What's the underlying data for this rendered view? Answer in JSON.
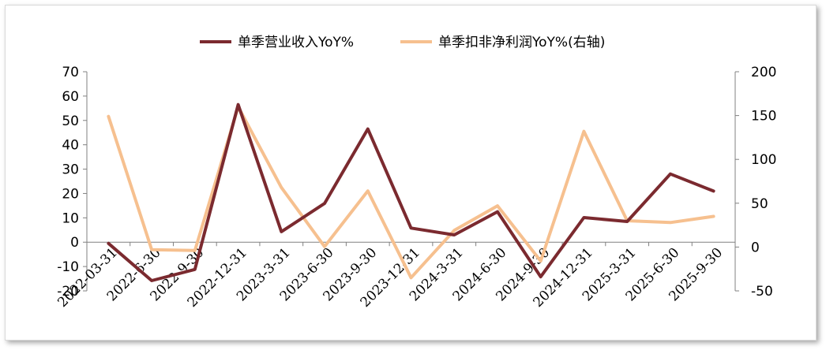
{
  "chart_data": {
    "type": "line",
    "categories": [
      "2022-03-31",
      "2022-6-30",
      "2022-9-30",
      "2022-12-31",
      "2023-3-31",
      "2023-6-30",
      "2023-9-30",
      "2023-12-31",
      "2024-3-31",
      "2024-6-30",
      "2024-9-30",
      "2024-12-31",
      "2025-3-31",
      "2025-6-30",
      "2025-9-30"
    ],
    "series": [
      {
        "name": "单季营业收入YoY%",
        "axis": "left",
        "color": "#7b2a2f",
        "values": [
          -0.5,
          -15.8,
          -11.2,
          56.5,
          4.3,
          15.9,
          46.5,
          5.8,
          3.0,
          12.5,
          -14.2,
          10.1,
          8.5,
          28.0,
          21.0
        ]
      },
      {
        "name": "单季扣非净利润YoY%(右轴)",
        "axis": "right",
        "color": "#f6c08f",
        "values": [
          149,
          -3,
          -4,
          160,
          68,
          0.5,
          64,
          -35,
          19,
          47,
          -16,
          132,
          30,
          28,
          35
        ]
      }
    ],
    "y_left": {
      "min": -20,
      "max": 70,
      "step": 10,
      "ticks": [
        "-20",
        "-10",
        "0",
        "10",
        "20",
        "30",
        "40",
        "50",
        "60",
        "70"
      ]
    },
    "y_right": {
      "min": -50,
      "max": 200,
      "step": 50,
      "ticks": [
        "-50",
        "0",
        "50",
        "100",
        "150",
        "200"
      ]
    },
    "legend_position": "top-center",
    "grid": false
  }
}
